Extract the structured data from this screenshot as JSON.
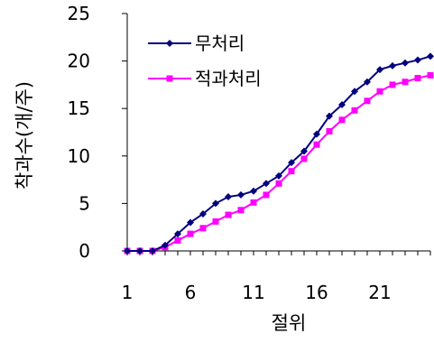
{
  "chart_data": {
    "type": "line",
    "xlabel": "절위",
    "ylabel": "착과수(개/주)",
    "x": [
      1,
      2,
      3,
      4,
      5,
      6,
      7,
      8,
      9,
      10,
      11,
      12,
      13,
      14,
      15,
      16,
      17,
      18,
      19,
      20,
      21,
      22,
      23,
      24,
      25
    ],
    "xticks": [
      1,
      6,
      11,
      16,
      21
    ],
    "xlim": [
      1,
      25
    ],
    "yticks": [
      0,
      5,
      10,
      15,
      20,
      25
    ],
    "ylim": [
      0,
      25
    ],
    "grid": false,
    "legend_position": "top-left",
    "series": [
      {
        "name": "무처리",
        "color": "#000080",
        "marker": "diamond",
        "values": [
          0,
          0,
          0,
          0.6,
          1.8,
          3.0,
          3.9,
          5.0,
          5.7,
          5.9,
          6.3,
          7.1,
          7.9,
          9.3,
          10.5,
          12.3,
          14.2,
          15.4,
          16.8,
          17.8,
          19.1,
          19.5,
          19.8,
          20.1,
          20.5
        ]
      },
      {
        "name": "적과처리",
        "color": "#ff00ff",
        "marker": "square",
        "values": [
          0,
          0,
          0,
          0.4,
          1.1,
          1.8,
          2.4,
          3.1,
          3.8,
          4.3,
          5.1,
          5.9,
          7.1,
          8.4,
          9.7,
          11.2,
          12.6,
          13.8,
          14.8,
          15.8,
          16.8,
          17.5,
          17.8,
          18.2,
          18.5
        ]
      }
    ]
  }
}
